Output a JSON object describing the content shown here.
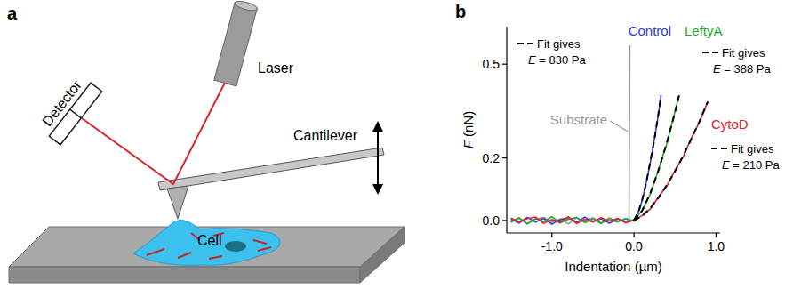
{
  "diagram": {
    "panel_label": "a",
    "labels": {
      "laser": "Laser",
      "detector": "Detector",
      "cantilever": "Cantilever",
      "cell": "Cell"
    }
  },
  "chart_data": {
    "panel_label": "b",
    "type": "line",
    "x_label": "Indentation (µm)",
    "y_label": "F (nN)",
    "xlim": [
      -1.55,
      1.05
    ],
    "ylim": [
      -0.04,
      0.62
    ],
    "xticks": [
      {
        "value": -1,
        "label": "-1.0"
      },
      {
        "value": 0,
        "label": "0.0"
      },
      {
        "value": 1,
        "label": "1.0"
      }
    ],
    "yticks": [
      {
        "value": 0,
        "label": "0.0"
      },
      {
        "value": 0.2,
        "label": "0.2"
      },
      {
        "value": 0.5,
        "label": "0.5"
      }
    ],
    "series": [
      {
        "name": "Control",
        "color": "#2a3fe0",
        "x": [
          -1.5,
          -1.4,
          -1.3,
          -1.2,
          -1.1,
          -1.0,
          -0.9,
          -0.8,
          -0.7,
          -0.6,
          -0.5,
          -0.4,
          -0.3,
          -0.2,
          -0.1,
          0,
          0.05,
          0.1,
          0.15,
          0.2,
          0.25,
          0.3,
          0.33
        ],
        "values": [
          0.004,
          -0.008,
          0.01,
          -0.005,
          0.007,
          -0.012,
          0.003,
          0.009,
          -0.006,
          0.011,
          -0.004,
          0.006,
          -0.009,
          0.005,
          -0.003,
          0.002,
          0.025,
          0.064,
          0.122,
          0.186,
          0.262,
          0.342,
          0.4
        ],
        "fit_values": [
          null,
          null,
          null,
          null,
          null,
          null,
          null,
          null,
          null,
          null,
          null,
          null,
          null,
          null,
          null,
          0,
          0.023,
          0.066,
          0.12,
          0.19,
          0.26,
          0.345,
          0.4
        ],
        "fit_label": "Fit gives",
        "fit_result": "E = 830 Pa"
      },
      {
        "name": "LeftyA",
        "color": "#1fa82c",
        "x": [
          -1.5,
          -1.4,
          -1.3,
          -1.2,
          -1.1,
          -1.0,
          -0.9,
          -0.8,
          -0.7,
          -0.6,
          -0.5,
          -0.4,
          -0.3,
          -0.2,
          -0.1,
          0,
          0.1,
          0.2,
          0.3,
          0.4,
          0.5,
          0.55
        ],
        "values": [
          -0.006,
          0.009,
          -0.011,
          0.006,
          -0.003,
          0.012,
          -0.008,
          0.004,
          0.01,
          -0.007,
          0.005,
          -0.01,
          0.008,
          -0.004,
          0.006,
          -0.002,
          0.033,
          0.085,
          0.164,
          0.245,
          0.349,
          0.4
        ],
        "fit_values": [
          null,
          null,
          null,
          null,
          null,
          null,
          null,
          null,
          null,
          null,
          null,
          null,
          null,
          null,
          null,
          0,
          0.031,
          0.088,
          0.161,
          0.248,
          0.346,
          0.4
        ],
        "fit_label": "Fit gives",
        "fit_result": "E = 388 Pa"
      },
      {
        "name": "CytoD",
        "color": "#e0242a",
        "x": [
          -1.5,
          -1.4,
          -1.3,
          -1.2,
          -1.1,
          -1.0,
          -0.9,
          -0.8,
          -0.7,
          -0.6,
          -0.5,
          -0.4,
          -0.3,
          -0.2,
          -0.1,
          0,
          0.1,
          0.2,
          0.3,
          0.4,
          0.5,
          0.6,
          0.7,
          0.8,
          0.9
        ],
        "values": [
          0.008,
          -0.004,
          0.006,
          0.011,
          -0.009,
          0.003,
          -0.006,
          0.012,
          -0.01,
          0.004,
          -0.005,
          0.009,
          -0.002,
          0.007,
          -0.008,
          0.001,
          0.016,
          0.037,
          0.076,
          0.11,
          0.16,
          0.204,
          0.264,
          0.315,
          0.38
        ],
        "fit_values": [
          null,
          null,
          null,
          null,
          null,
          null,
          null,
          null,
          null,
          null,
          null,
          null,
          null,
          null,
          null,
          0,
          0.014,
          0.04,
          0.073,
          0.113,
          0.157,
          0.207,
          0.261,
          0.318,
          0.38
        ],
        "fit_label": "Fit gives",
        "fit_result": "E = 210 Pa"
      },
      {
        "name": "Substrate",
        "color": "#9a9a9a",
        "x": [
          -1.5,
          -1.4,
          -1.3,
          -1.2,
          -1.1,
          -1.0,
          -0.9,
          -0.8,
          -0.7,
          -0.6,
          -0.5,
          -0.4,
          -0.3,
          -0.2,
          -0.1,
          -0.06,
          -0.05
        ],
        "values": [
          -0.003,
          0.007,
          -0.009,
          0.004,
          0.01,
          -0.006,
          0.005,
          -0.011,
          0.008,
          -0.002,
          0.009,
          -0.007,
          0.003,
          -0.005,
          0.006,
          0,
          0.56
        ]
      }
    ]
  }
}
